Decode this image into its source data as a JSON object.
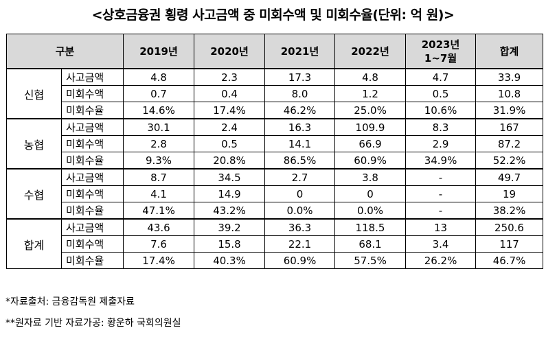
{
  "title": "<상호금융권 횡령 사고금액 중 미회수액 및 미회수율(단위: 억 원)>",
  "table": {
    "header": {
      "category": "구분",
      "years": [
        "2019년",
        "2020년",
        "2021년",
        "2022년",
        "2023년\n1~7월",
        "합계"
      ]
    },
    "groups": [
      {
        "name": "신협",
        "rows": [
          {
            "metric": "사고금액",
            "values": [
              "4.8",
              "2.3",
              "17.3",
              "4.8",
              "4.7",
              "33.9"
            ]
          },
          {
            "metric": "미회수액",
            "values": [
              "0.7",
              "0.4",
              "8.0",
              "1.2",
              "0.5",
              "10.8"
            ]
          },
          {
            "metric": "미회수율",
            "values": [
              "14.6%",
              "17.4%",
              "46.2%",
              "25.0%",
              "10.6%",
              "31.9%"
            ]
          }
        ]
      },
      {
        "name": "농협",
        "rows": [
          {
            "metric": "사고금액",
            "values": [
              "30.1",
              "2.4",
              "16.3",
              "109.9",
              "8.3",
              "167"
            ]
          },
          {
            "metric": "미회수액",
            "values": [
              "2.8",
              "0.5",
              "14.1",
              "66.9",
              "2.9",
              "87.2"
            ]
          },
          {
            "metric": "미회수율",
            "values": [
              "9.3%",
              "20.8%",
              "86.5%",
              "60.9%",
              "34.9%",
              "52.2%"
            ]
          }
        ]
      },
      {
        "name": "수협",
        "rows": [
          {
            "metric": "사고금액",
            "values": [
              "8.7",
              "34.5",
              "2.7",
              "3.8",
              "-",
              "49.7"
            ]
          },
          {
            "metric": "미회수액",
            "values": [
              "4.1",
              "14.9",
              "0",
              "0",
              "-",
              "19"
            ]
          },
          {
            "metric": "미회수율",
            "values": [
              "47.1%",
              "43.2%",
              "0.0%",
              "0.0%",
              "-",
              "38.2%"
            ]
          }
        ]
      },
      {
        "name": "합계",
        "rows": [
          {
            "metric": "사고금액",
            "values": [
              "43.6",
              "39.2",
              "36.3",
              "118.5",
              "13",
              "250.6"
            ]
          },
          {
            "metric": "미회수액",
            "values": [
              "7.6",
              "15.8",
              "22.1",
              "68.1",
              "3.4",
              "117"
            ]
          },
          {
            "metric": "미회수율",
            "values": [
              "17.4%",
              "40.3%",
              "60.9%",
              "57.5%",
              "26.2%",
              "46.7%"
            ]
          }
        ]
      }
    ]
  },
  "notes": [
    "*자료출처: 금융감독원 제출자료",
    "**원자료 기반 자료가공: 황운하 국회의원실"
  ]
}
